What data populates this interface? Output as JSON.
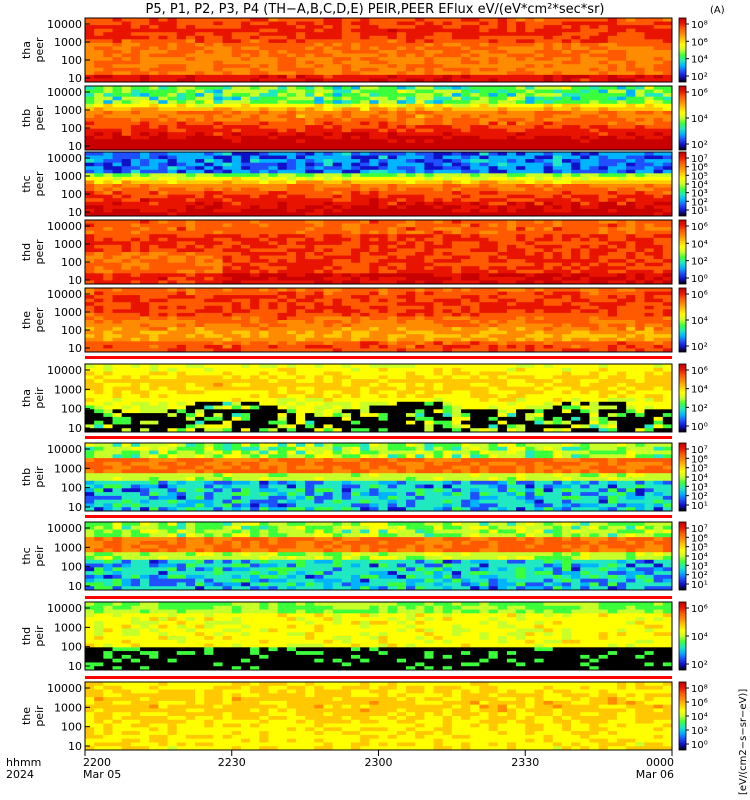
{
  "title": "P5, P1, P2, P3, P4 (TH−A,B,C,D,E) PEIR,PEER EFlux eV/(eV*cm²*sec*sr)",
  "units_label": "(A)",
  "colorbar_side_label": "[eV/(cm2−s−sr−eV)]",
  "x_axis": {
    "caption_row1": "hhmm",
    "caption_row2": "2024",
    "ticks": [
      {
        "label": "2200",
        "sub": "Mar 05",
        "frac": 0.0
      },
      {
        "label": "2230",
        "sub": "",
        "frac": 0.25
      },
      {
        "label": "2300",
        "sub": "",
        "frac": 0.5
      },
      {
        "label": "2330",
        "sub": "",
        "frac": 0.75
      },
      {
        "label": "0000",
        "sub": "Mar 06",
        "frac": 1.0
      }
    ]
  },
  "colors": {
    "colormap": [
      "#000000",
      "#1010c8",
      "#1e50ff",
      "#00b4ff",
      "#20e8c0",
      "#3cff3c",
      "#c8ff28",
      "#ffff00",
      "#ffc800",
      "#ff8c00",
      "#ff5a00",
      "#e81400",
      "#c80000"
    ]
  },
  "chart_data": {
    "type": "heatmap",
    "x_range": [
      "2200",
      "0000"
    ],
    "y_scale": "log",
    "panels": [
      {
        "probe": "tha",
        "species": "peer",
        "yticks": [
          "10000",
          "1000",
          "100",
          "10"
        ],
        "cbar_ticks": [
          "10⁸",
          "10⁶",
          "10⁴",
          "10²"
        ],
        "pattern": "e_hot"
      },
      {
        "probe": "thb",
        "species": "peer",
        "yticks": [
          "10000",
          "1000",
          "100",
          "10"
        ],
        "cbar_ticks": [
          "10⁶",
          "10⁴",
          "10²"
        ],
        "pattern": "e_band"
      },
      {
        "probe": "thc",
        "species": "peer",
        "yticks": [
          "10000",
          "1000",
          "100",
          "10"
        ],
        "cbar_ticks": [
          "10⁷",
          "10⁶",
          "10⁵",
          "10⁴",
          "10³",
          "10²",
          "10¹"
        ],
        "pattern": "e_band2"
      },
      {
        "probe": "thd",
        "species": "peer",
        "yticks": [
          "10000",
          "1000",
          "100",
          "10"
        ],
        "cbar_ticks": [
          "10⁶",
          "10⁴",
          "10²",
          "10⁰"
        ],
        "pattern": "e_hot2"
      },
      {
        "probe": "the",
        "species": "peer",
        "yticks": [
          "10000",
          "1000",
          "100",
          "10"
        ],
        "cbar_ticks": [
          "10⁶",
          "10⁴",
          "10²"
        ],
        "pattern": "e_hot3"
      },
      {
        "probe": "tha",
        "species": "peir",
        "yticks": [
          "10000",
          "1000",
          "100",
          "10"
        ],
        "cbar_ticks": [
          "10⁶",
          "10⁴",
          "10²",
          "10⁰"
        ],
        "pattern": "i_yellow"
      },
      {
        "probe": "thb",
        "species": "peir",
        "yticks": [
          "10000",
          "1000",
          "100",
          "10"
        ],
        "cbar_ticks": [
          "10⁷",
          "10⁶",
          "10⁵",
          "10⁴",
          "10³",
          "10²",
          "10¹"
        ],
        "pattern": "i_band"
      },
      {
        "probe": "thc",
        "species": "peir",
        "yticks": [
          "10000",
          "1000",
          "100",
          "10"
        ],
        "cbar_ticks": [
          "10⁷",
          "10⁶",
          "10⁵",
          "10⁴",
          "10³",
          "10²",
          "10¹"
        ],
        "pattern": "i_band"
      },
      {
        "probe": "thd",
        "species": "peir",
        "yticks": [
          "10000",
          "1000",
          "100",
          "10"
        ],
        "cbar_ticks": [
          "10⁶",
          "10⁴",
          "10²"
        ],
        "pattern": "i_thd"
      },
      {
        "probe": "the",
        "species": "peir",
        "yticks": [
          "10000",
          "1000",
          "100",
          "10"
        ],
        "cbar_ticks": [
          "10⁸",
          "10⁶",
          "10⁴",
          "10²",
          "10⁰"
        ],
        "pattern": "i_the"
      }
    ]
  }
}
